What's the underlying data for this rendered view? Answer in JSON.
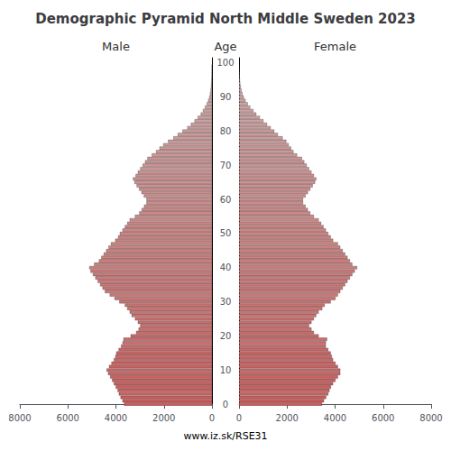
{
  "chart_data": {
    "type": "bar",
    "orientation": "horizontal",
    "title": "Demographic Pyramid North Middle Sweden 2023",
    "annotations": [
      "www.iz.sk/RSE31"
    ],
    "ylabel": "Age",
    "y": [
      0,
      1,
      2,
      3,
      4,
      5,
      6,
      7,
      8,
      9,
      10,
      11,
      12,
      13,
      14,
      15,
      16,
      17,
      18,
      19,
      20,
      21,
      22,
      23,
      24,
      25,
      26,
      27,
      28,
      29,
      30,
      31,
      32,
      33,
      34,
      35,
      36,
      37,
      38,
      39,
      40,
      41,
      42,
      43,
      44,
      45,
      46,
      47,
      48,
      49,
      50,
      51,
      52,
      53,
      54,
      55,
      56,
      57,
      58,
      59,
      60,
      61,
      62,
      63,
      64,
      65,
      66,
      67,
      68,
      69,
      70,
      71,
      72,
      73,
      74,
      75,
      76,
      77,
      78,
      79,
      80,
      81,
      82,
      83,
      84,
      85,
      86,
      87,
      88,
      89,
      90,
      91,
      92,
      93,
      94,
      95,
      96,
      97,
      98,
      99
    ],
    "ylim": [
      -0.5,
      101.5
    ],
    "yticks": [
      0,
      10,
      20,
      30,
      40,
      50,
      60,
      70,
      80,
      90,
      100
    ],
    "xlim": [
      0,
      8000
    ],
    "xticks": [
      0,
      2000,
      4000,
      6000,
      8000
    ],
    "grid": false,
    "colors": [
      "#cc5c5c",
      "#cc5d5d",
      "#cc5d5d",
      "#cc5e5e",
      "#cc5f5f",
      "#cc6060",
      "#cc6161",
      "#cc6262",
      "#cc6262",
      "#cc6363",
      "#cc6464",
      "#cc6565",
      "#cc6666",
      "#cc6666",
      "#cc6767",
      "#cc6868",
      "#cc6969",
      "#cc6a6a",
      "#cc6a6a",
      "#cc6b6b",
      "#cc6c6c",
      "#cc6d6d",
      "#cc6e6e",
      "#cc6f6f",
      "#cc6f6f",
      "#cc7070",
      "#cc7171",
      "#cc7272",
      "#cc7373",
      "#cc7373",
      "#cc7474",
      "#cc7575",
      "#cc7676",
      "#cc7777",
      "#cc7878",
      "#cc7878",
      "#cc7979",
      "#cc7a7a",
      "#cc7b7b",
      "#cc7c7c",
      "#cc7c7c",
      "#cc7d7d",
      "#cc7e7e",
      "#cc7f7f",
      "#cc8080",
      "#cc8181",
      "#cc8181",
      "#cc8282",
      "#cc8383",
      "#cc8484",
      "#cc8585",
      "#cc8585",
      "#cc8686",
      "#cc8787",
      "#cc8888",
      "#cc8989",
      "#cc8989",
      "#cc8a8a",
      "#cc8b8b",
      "#cc8c8c",
      "#cc8d8d",
      "#cc8e8e",
      "#cc8e8e",
      "#cc8f8f",
      "#cc9090",
      "#cc9191",
      "#cc9292",
      "#cc9292",
      "#cc9393",
      "#cc9494",
      "#cc9595",
      "#cc9696",
      "#cc9797",
      "#cc9797",
      "#cc9898",
      "#cc9999",
      "#cc9a9a",
      "#cc9b9b",
      "#cc9b9b",
      "#cc9c9c",
      "#cc9d9d",
      "#cc9e9e",
      "#cc9f9f",
      "#cca0a0",
      "#cca0a0",
      "#cca1a1",
      "#cca2a2",
      "#cca3a3",
      "#cca4a4",
      "#cca4a4",
      "#cca5a5",
      "#cca6a6",
      "#cca7a7",
      "#cca8a8",
      "#cca9a9",
      "#cca9a9",
      "#ccaaaa",
      "#ccabab",
      "#ccacac",
      "#ccadad"
    ],
    "series": [
      {
        "name": "Male",
        "values": [
          3650,
          3720,
          3800,
          3870,
          3920,
          4000,
          4080,
          4150,
          4230,
          4320,
          4380,
          4280,
          4180,
          4080,
          4020,
          3980,
          3880,
          3780,
          3720,
          3680,
          3380,
          3150,
          3050,
          2980,
          3080,
          3200,
          3340,
          3420,
          3520,
          3620,
          3850,
          4050,
          4250,
          4450,
          4550,
          4650,
          4750,
          4850,
          4950,
          5050,
          5100,
          4900,
          4700,
          4600,
          4500,
          4400,
          4300,
          4200,
          4020,
          3900,
          3830,
          3720,
          3620,
          3520,
          3420,
          3200,
          3020,
          2920,
          2820,
          2720,
          2720,
          2830,
          2930,
          3030,
          3130,
          3220,
          3280,
          3170,
          3080,
          2980,
          2880,
          2780,
          2680,
          2500,
          2320,
          2180,
          2020,
          1820,
          1600,
          1420,
          1220,
          1020,
          870,
          720,
          590,
          460,
          370,
          290,
          210,
          155,
          105,
          72,
          52,
          37,
          26,
          16,
          10,
          7,
          5,
          3
        ]
      },
      {
        "name": "Female",
        "values": [
          3450,
          3530,
          3620,
          3710,
          3760,
          3820,
          3910,
          4010,
          4110,
          4210,
          4210,
          4110,
          4010,
          3910,
          3860,
          3810,
          3710,
          3610,
          3610,
          3660,
          3310,
          3110,
          3010,
          2910,
          3010,
          3110,
          3210,
          3310,
          3460,
          3560,
          3810,
          4010,
          4110,
          4210,
          4310,
          4410,
          4510,
          4610,
          4710,
          4810,
          4910,
          4710,
          4610,
          4510,
          4410,
          4310,
          4210,
          4110,
          3910,
          3810,
          3710,
          3610,
          3510,
          3410,
          3310,
          3110,
          2960,
          2860,
          2760,
          2660,
          2660,
          2760,
          2860,
          2960,
          3060,
          3160,
          3210,
          3110,
          3010,
          2910,
          2810,
          2710,
          2610,
          2410,
          2260,
          2160,
          2060,
          1960,
          1810,
          1610,
          1460,
          1310,
          1160,
          1010,
          860,
          710,
          590,
          460,
          355,
          265,
          188,
          133,
          97,
          66,
          43,
          29,
          19,
          12,
          7,
          4
        ]
      }
    ]
  }
}
